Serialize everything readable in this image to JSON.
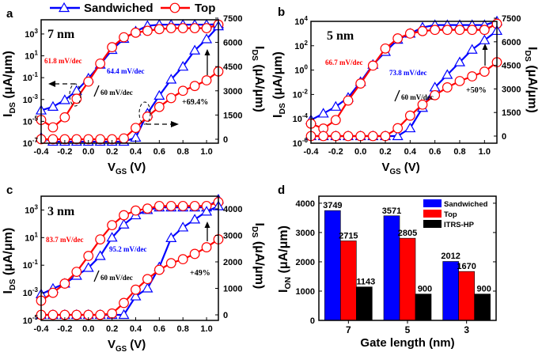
{
  "colors": {
    "sandwiched": "#0000ff",
    "top": "#ff0000",
    "itrs": "#000000"
  },
  "legend": {
    "sandwiched": "Sandwiched",
    "top": "Top",
    "marker_sandwiched": "triangle",
    "marker_top": "circle"
  },
  "chart_data": [
    {
      "panel": "a",
      "type": "line",
      "annotation": "7 nm",
      "x": [
        -0.4,
        -0.3,
        -0.2,
        -0.1,
        0.0,
        0.1,
        0.2,
        0.3,
        0.4,
        0.5,
        0.6,
        0.7,
        0.8,
        0.9,
        1.0,
        1.1
      ],
      "xlim": [
        -0.4,
        1.1
      ],
      "xticks": [
        "-0.4",
        "-0.2",
        "0.0",
        "0.2",
        "0.4",
        "0.6",
        "0.8",
        "1.0"
      ],
      "xlabel": {
        "main": "V",
        "sub": "GS",
        "rest": " (V)"
      },
      "ylabel_left": {
        "main": "I",
        "sub": "DS",
        "rest": " (μA/μm)"
      },
      "ylabel_right": {
        "main": "I",
        "sub": "DS",
        "rest": " (μA/μm)"
      },
      "yscale_left": "log",
      "ylim_left_exp": [
        -7,
        4.3
      ],
      "yticks_left_base": "10",
      "yticks_left_exp": [
        "-7",
        "-5",
        "-3",
        "-1",
        "1",
        "3"
      ],
      "ylim_right": [
        -245,
        7400
      ],
      "yticks_right": [
        "0",
        "1500",
        "3000",
        "4500",
        "6000",
        "7500"
      ],
      "series_log": [
        {
          "name": "Sandwiched",
          "log10_values": [
            -4.0,
            -3.66,
            -3.05,
            -2.2,
            -1.07,
            0.2,
            1.55,
            2.56,
            3.24,
            3.75,
            3.85,
            3.85,
            3.85,
            3.85,
            3.85,
            3.9
          ]
        },
        {
          "name": "Top",
          "log10_values": [
            -4.87,
            -5.55,
            -4.63,
            -2.93,
            -1.36,
            0.29,
            1.79,
            2.7,
            3.12,
            3.29,
            3.44,
            3.53,
            3.53,
            3.53,
            3.53,
            3.85
          ]
        }
      ],
      "series_linear": [
        {
          "name": "Sandwiched",
          "values": [
            100,
            -150,
            -150,
            -150,
            -150,
            -150,
            -150,
            -150,
            100,
            1600,
            2700,
            3700,
            4500,
            5500,
            6200,
            7000
          ]
        },
        {
          "name": "Top",
          "values": [
            0,
            0,
            0,
            0,
            0,
            0,
            0,
            50,
            700,
            1400,
            2000,
            2550,
            3000,
            3300,
            3650,
            4200
          ]
        }
      ],
      "annotations": {
        "ss_top": "61.8 mV/dec",
        "ss_sandwiched": "64.4 mV/dec",
        "ss_ideal": "60 mV/dec",
        "gain": "+69.4%"
      }
    },
    {
      "panel": "b",
      "type": "line",
      "annotation": "5 nm",
      "x": [
        -0.4,
        -0.3,
        -0.2,
        -0.1,
        0.0,
        0.1,
        0.2,
        0.3,
        0.4,
        0.5,
        0.6,
        0.7,
        0.8,
        0.9,
        1.0,
        1.1
      ],
      "xlim": [
        -0.4,
        1.1
      ],
      "xticks": [
        "-0.4",
        "-0.2",
        "0.0",
        "0.2",
        "0.4",
        "0.6",
        "0.8",
        "1.0"
      ],
      "xlabel": {
        "main": "V",
        "sub": "GS",
        "rest": " (V)"
      },
      "ylabel_left": {
        "main": "I",
        "sub": "DS",
        "rest": " (μA/μm)"
      },
      "ylabel_right": {
        "main": "I",
        "sub": "DS",
        "rest": " (μA/μm)"
      },
      "yscale_left": "log",
      "ylim_left_exp": [
        -6,
        4
      ],
      "yticks_left_base": "10",
      "yticks_left_exp": [
        "-6",
        "-4",
        "-2",
        "0",
        "2",
        "4"
      ],
      "ylim_right": [
        -453,
        7300
      ],
      "yticks_right": [
        "0",
        "1500",
        "3000",
        "4500",
        "6000",
        "7500"
      ],
      "series_log": [
        {
          "name": "Sandwiched",
          "log10_values": [
            -4.1,
            -3.56,
            -3.0,
            -2.26,
            -0.97,
            0.44,
            1.5,
            2.5,
            3.0,
            3.5,
            3.7,
            3.7,
            3.7,
            3.7,
            3.7,
            4.0
          ]
        },
        {
          "name": "Top",
          "log10_values": [
            -4.4,
            -4.8,
            -4.1,
            -2.5,
            -1.1,
            0.37,
            1.77,
            2.6,
            3.0,
            3.2,
            3.3,
            3.3,
            3.3,
            3.3,
            3.3,
            3.8
          ]
        }
      ],
      "series_linear": [
        {
          "name": "Sandwiched",
          "values": [
            0,
            0,
            0,
            0,
            0,
            0,
            0,
            0,
            500,
            1800,
            3100,
            3900,
            4700,
            5500,
            6100,
            6700
          ]
        },
        {
          "name": "Top",
          "values": [
            0,
            0,
            0,
            0,
            0,
            0,
            0,
            500,
            1300,
            2000,
            2600,
            3100,
            3500,
            3800,
            4100,
            4700
          ]
        }
      ],
      "annotations": {
        "ss_top": "66.7 mV/dec",
        "ss_sandwiched": "73.8 mV/dec",
        "ss_ideal": "60 mV/dec",
        "gain": "+50%"
      }
    },
    {
      "panel": "c",
      "type": "line",
      "annotation": "3 nm",
      "x": [
        -0.4,
        -0.3,
        -0.2,
        -0.1,
        0.0,
        0.1,
        0.2,
        0.3,
        0.4,
        0.5,
        0.6,
        0.7,
        0.8,
        0.9,
        1.0,
        1.1
      ],
      "xlim": [
        -0.4,
        1.1
      ],
      "xticks": [
        "-0.4",
        "-0.2",
        "0.0",
        "0.2",
        "0.4",
        "0.6",
        "0.8",
        "1.0"
      ],
      "xlabel": {
        "main": "V",
        "sub": "GS",
        "rest": " (V)"
      },
      "ylabel_left": {
        "main": "I",
        "sub": "DS",
        "rest": " (μA/μm)"
      },
      "ylabel_right": {
        "main": "I",
        "sub": "DS",
        "rest": " (μA/μm)"
      },
      "yscale_left": "log",
      "ylim_left_exp": [
        -5,
        4
      ],
      "yticks_left_base": "10",
      "yticks_left_exp": [
        "-5",
        "-3",
        "-1",
        "1",
        "3"
      ],
      "ylim_right": [
        -209,
        4478
      ],
      "yticks_right": [
        "0",
        "1000",
        "2000",
        "3000",
        "4000"
      ],
      "series_log": [
        {
          "name": "Sandwiched",
          "log10_values": [
            -3.1,
            -2.7,
            -2.33,
            -1.76,
            -1.19,
            -0.33,
            1.0,
            1.95,
            2.62,
            3.0,
            3.19,
            3.19,
            3.19,
            3.19,
            3.19,
            3.76
          ]
        },
        {
          "name": "Top",
          "log10_values": [
            -3.57,
            -3.0,
            -2.33,
            -1.48,
            -0.33,
            0.87,
            1.9,
            2.62,
            2.96,
            3.1,
            3.29,
            3.29,
            3.29,
            3.29,
            3.29,
            3.57
          ]
        }
      ],
      "series_linear": [
        {
          "name": "Sandwiched",
          "values": [
            0,
            0,
            0,
            0,
            0,
            0,
            0,
            0,
            700,
            1000,
            1800,
            2900,
            3300,
            3600,
            3900,
            4100
          ]
        },
        {
          "name": "Top",
          "values": [
            0,
            0,
            0,
            0,
            0,
            0,
            50,
            450,
            950,
            1350,
            1700,
            1950,
            2100,
            2300,
            2550,
            2850
          ]
        }
      ],
      "annotations": {
        "ss_top": "83.7 mV/dec",
        "ss_sandwiched": "95.2 mV/dec",
        "ss_ideal": "60 mV/dec",
        "gain": "+49%"
      }
    },
    {
      "panel": "d",
      "type": "bar",
      "categories": [
        "7",
        "5",
        "3"
      ],
      "series": [
        {
          "name": "Sandwiched",
          "values": [
            3749,
            3571,
            2012
          ]
        },
        {
          "name": "Top",
          "values": [
            2715,
            2805,
            1670
          ]
        },
        {
          "name": "ITRS-HP",
          "values": [
            1143,
            900,
            900
          ]
        }
      ],
      "ylim": [
        0,
        4240
      ],
      "yticks": [
        "0",
        "1000",
        "2000",
        "3000",
        "4000"
      ],
      "xlabel": "Gate length (nm)",
      "ylabel": {
        "main": "I",
        "sub": "ON",
        "rest": " (μA/μm)"
      },
      "legend_placement": "top-right"
    }
  ]
}
